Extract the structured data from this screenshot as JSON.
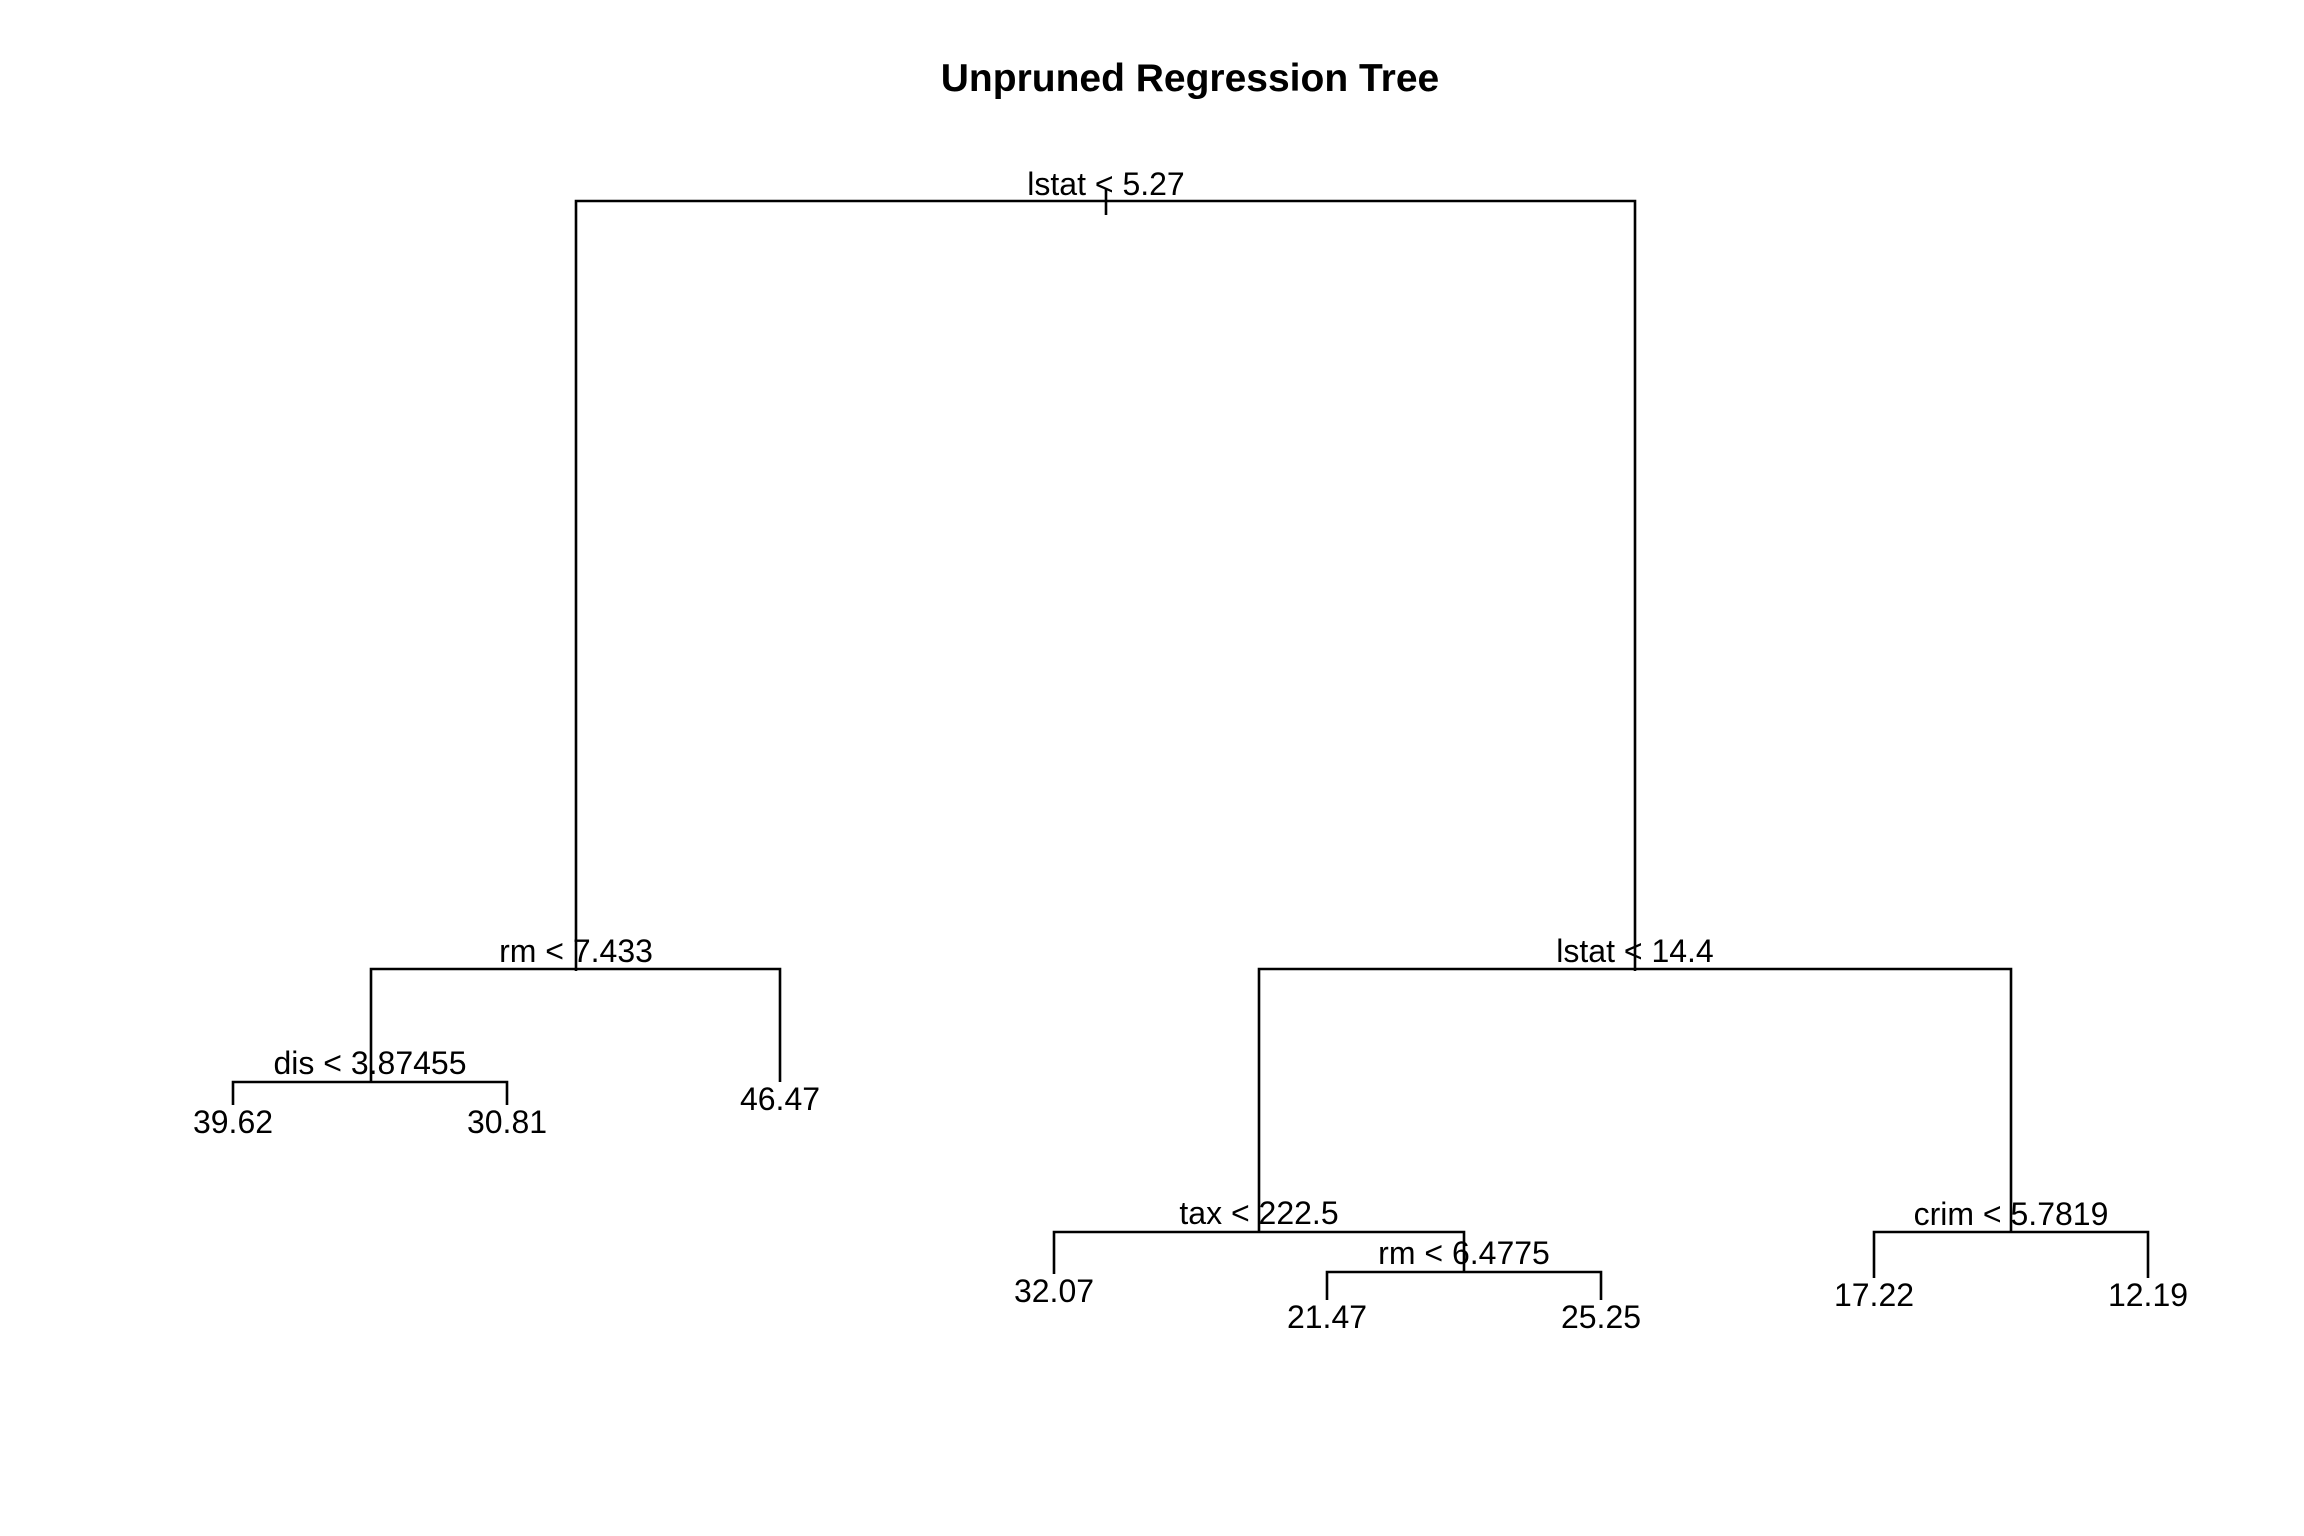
{
  "title": "Unpruned Regression Tree",
  "colors": {
    "line": "#000000",
    "text": "#000000",
    "background": "#ffffff"
  },
  "tree": {
    "splits": [
      {
        "id": "n1",
        "label": "lstat < 5.27"
      },
      {
        "id": "n2",
        "label": "rm < 7.433"
      },
      {
        "id": "n3",
        "label": "lstat < 14.4"
      },
      {
        "id": "n4",
        "label": "dis < 3.87455"
      },
      {
        "id": "n6",
        "label": "tax < 222.5"
      },
      {
        "id": "n7",
        "label": "crim < 5.7819"
      },
      {
        "id": "n13",
        "label": "rm < 6.4775"
      }
    ],
    "leaves": [
      {
        "id": "n8",
        "value": "39.62"
      },
      {
        "id": "n9",
        "value": "30.81"
      },
      {
        "id": "n5",
        "value": "46.47"
      },
      {
        "id": "n12",
        "value": "32.07"
      },
      {
        "id": "n26",
        "value": "21.47"
      },
      {
        "id": "n27",
        "value": "25.25"
      },
      {
        "id": "n14",
        "value": "17.22"
      },
      {
        "id": "n15",
        "value": "12.19"
      }
    ]
  }
}
